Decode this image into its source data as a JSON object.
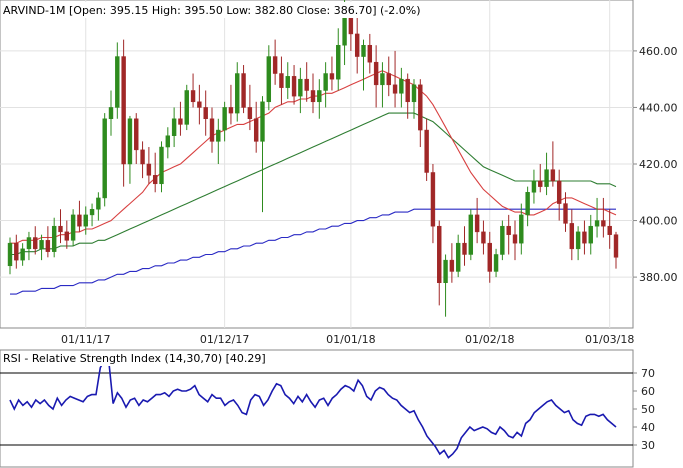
{
  "chart_data": [
    {
      "type": "candlestick",
      "title": "ARVIND-1M [Open: 395.15  High: 395.50  Low: 382.80  Close: 386.70]  (-2.0%)",
      "ylim": [
        362,
        478
      ],
      "yticks": [
        380,
        400,
        420,
        440,
        460
      ],
      "ytick_labels": [
        "380.00",
        "400.00",
        "420.00",
        "440.00",
        "460.00"
      ],
      "xtick_labels": [
        {
          "label": "01/11/17",
          "index": 12
        },
        {
          "label": "01/12/17",
          "index": 34
        },
        {
          "label": "01/01/18",
          "index": 54
        },
        {
          "label": "01/02/18",
          "index": 76
        },
        {
          "label": "01/03/18",
          "index": 95
        }
      ],
      "candles": [
        [
          384,
          394,
          381,
          392
        ],
        [
          392,
          395,
          383,
          386
        ],
        [
          386,
          392,
          384,
          390
        ],
        [
          390,
          396,
          386,
          394
        ],
        [
          394,
          398,
          388,
          390
        ],
        [
          390,
          395,
          386,
          393
        ],
        [
          393,
          398,
          387,
          389
        ],
        [
          389,
          401,
          387,
          398
        ],
        [
          398,
          404,
          392,
          396
        ],
        [
          396,
          400,
          390,
          393
        ],
        [
          393,
          404,
          391,
          402
        ],
        [
          402,
          407,
          396,
          398
        ],
        [
          398,
          405,
          395,
          402
        ],
        [
          402,
          406,
          398,
          404
        ],
        [
          404,
          410,
          400,
          408
        ],
        [
          408,
          438,
          405,
          436
        ],
        [
          436,
          446,
          430,
          440
        ],
        [
          440,
          463,
          436,
          458
        ],
        [
          458,
          464,
          412,
          420
        ],
        [
          420,
          437,
          413,
          436
        ],
        [
          436,
          438,
          420,
          425
        ],
        [
          425,
          428,
          415,
          420
        ],
        [
          420,
          426,
          413,
          416
        ],
        [
          416,
          424,
          410,
          413
        ],
        [
          413,
          428,
          410,
          426
        ],
        [
          426,
          433,
          422,
          430
        ],
        [
          430,
          440,
          426,
          436
        ],
        [
          436,
          442,
          430,
          434
        ],
        [
          434,
          448,
          432,
          446
        ],
        [
          446,
          452,
          440,
          442
        ],
        [
          442,
          448,
          434,
          440
        ],
        [
          440,
          446,
          430,
          436
        ],
        [
          436,
          440,
          424,
          428
        ],
        [
          428,
          436,
          420,
          432
        ],
        [
          432,
          442,
          428,
          440
        ],
        [
          440,
          448,
          434,
          438
        ],
        [
          438,
          456,
          435,
          452
        ],
        [
          452,
          455,
          438,
          440
        ],
        [
          440,
          448,
          432,
          436
        ],
        [
          436,
          442,
          424,
          428
        ],
        [
          428,
          444,
          403,
          442
        ],
        [
          442,
          462,
          439,
          458
        ],
        [
          458,
          464,
          448,
          452
        ],
        [
          452,
          458,
          441,
          447
        ],
        [
          447,
          456,
          443,
          451
        ],
        [
          451,
          455,
          441,
          444
        ],
        [
          444,
          454,
          438,
          450
        ],
        [
          450,
          456,
          442,
          446
        ],
        [
          446,
          452,
          438,
          442
        ],
        [
          442,
          450,
          436,
          446
        ],
        [
          446,
          456,
          440,
          452
        ],
        [
          452,
          458,
          446,
          450
        ],
        [
          450,
          468,
          446,
          462
        ],
        [
          462,
          478,
          455,
          472
        ],
        [
          472,
          477,
          460,
          466
        ],
        [
          466,
          472,
          452,
          458
        ],
        [
          458,
          464,
          446,
          462
        ],
        [
          462,
          466,
          452,
          456
        ],
        [
          456,
          462,
          440,
          448
        ],
        [
          448,
          456,
          440,
          452
        ],
        [
          452,
          458,
          444,
          448
        ],
        [
          448,
          460,
          440,
          445
        ],
        [
          445,
          454,
          440,
          450
        ],
        [
          450,
          452,
          436,
          442
        ],
        [
          442,
          450,
          436,
          448
        ],
        [
          448,
          450,
          426,
          432
        ],
        [
          432,
          436,
          414,
          417
        ],
        [
          417,
          420,
          392,
          398
        ],
        [
          398,
          400,
          370,
          378
        ],
        [
          378,
          388,
          366,
          386
        ],
        [
          386,
          392,
          378,
          382
        ],
        [
          382,
          395,
          380,
          392
        ],
        [
          392,
          398,
          384,
          388
        ],
        [
          388,
          404,
          386,
          402
        ],
        [
          402,
          408,
          392,
          396
        ],
        [
          396,
          400,
          388,
          392
        ],
        [
          392,
          396,
          378,
          382
        ],
        [
          382,
          390,
          380,
          388
        ],
        [
          388,
          400,
          386,
          398
        ],
        [
          398,
          402,
          388,
          395
        ],
        [
          395,
          400,
          386,
          392
        ],
        [
          392,
          406,
          388,
          402
        ],
        [
          402,
          412,
          398,
          410
        ],
        [
          410,
          418,
          406,
          414
        ],
        [
          414,
          420,
          410,
          412
        ],
        [
          412,
          424,
          409,
          418
        ],
        [
          418,
          428,
          412,
          414
        ],
        [
          414,
          418,
          400,
          406
        ],
        [
          406,
          410,
          396,
          399
        ],
        [
          399,
          404,
          386,
          390
        ],
        [
          390,
          398,
          386,
          396
        ],
        [
          396,
          400,
          388,
          392
        ],
        [
          392,
          402,
          388,
          398
        ],
        [
          398,
          408,
          394,
          400
        ],
        [
          400,
          408,
          394,
          398
        ],
        [
          398,
          404,
          390,
          395
        ],
        [
          395,
          396,
          383,
          387
        ]
      ],
      "sma_red": [
        392,
        392,
        393,
        393,
        393,
        394,
        394,
        394,
        395,
        395,
        396,
        396,
        397,
        397,
        398,
        399,
        400,
        402,
        404,
        406,
        408,
        410,
        413,
        415,
        417,
        418,
        419,
        420,
        422,
        424,
        426,
        428,
        430,
        431,
        432,
        433,
        434,
        434,
        435,
        436,
        437,
        438,
        440,
        441,
        442,
        442,
        443,
        443,
        444,
        444,
        445,
        445,
        446,
        447,
        448,
        449,
        450,
        451,
        452,
        453,
        452,
        451,
        450,
        449,
        448,
        446,
        444,
        441,
        437,
        433,
        429,
        425,
        421,
        417,
        414,
        411,
        409,
        407,
        405,
        404,
        403,
        403,
        402,
        402,
        403,
        404,
        406,
        407,
        408,
        408,
        407,
        406,
        405,
        404,
        404,
        403,
        402
      ],
      "sma_green": [
        388,
        388,
        389,
        389,
        389,
        390,
        390,
        390,
        391,
        391,
        391,
        392,
        392,
        392,
        393,
        393,
        394,
        395,
        396,
        397,
        398,
        399,
        400,
        401,
        402,
        403,
        404,
        405,
        406,
        407,
        408,
        409,
        410,
        411,
        412,
        413,
        414,
        415,
        416,
        417,
        418,
        419,
        420,
        421,
        422,
        423,
        424,
        425,
        426,
        427,
        428,
        429,
        430,
        431,
        432,
        433,
        434,
        435,
        436,
        437,
        438,
        438,
        438,
        438,
        438,
        437,
        436,
        435,
        433,
        431,
        429,
        427,
        425,
        423,
        421,
        419,
        418,
        417,
        416,
        415,
        414,
        414,
        414,
        414,
        414,
        414,
        414,
        414,
        414,
        414,
        414,
        414,
        414,
        413,
        413,
        413,
        412
      ],
      "sma_blue": [
        374,
        374,
        375,
        375,
        375,
        376,
        376,
        376,
        377,
        377,
        377,
        378,
        378,
        378,
        379,
        379,
        380,
        381,
        381,
        382,
        382,
        383,
        383,
        384,
        384,
        385,
        385,
        386,
        386,
        387,
        387,
        388,
        388,
        389,
        389,
        390,
        390,
        391,
        391,
        392,
        392,
        393,
        393,
        394,
        394,
        395,
        395,
        396,
        396,
        397,
        397,
        398,
        398,
        399,
        399,
        400,
        400,
        401,
        401,
        402,
        402,
        403,
        403,
        403,
        404,
        404,
        404,
        404,
        404,
        404,
        404,
        404,
        404,
        404,
        404,
        404,
        404,
        404,
        404,
        404,
        404,
        404,
        404,
        404,
        404,
        404,
        404,
        404,
        404,
        404,
        404,
        404,
        404,
        404,
        404,
        404,
        404
      ],
      "colors": {
        "up": "#2e8b1e",
        "down": "#a02727",
        "sma_red": "#d84040",
        "sma_green": "#2e7d32",
        "sma_blue": "#2a2ac4"
      }
    },
    {
      "type": "line",
      "title": "RSI - Relative Strength Index (14,30,70) [40.29]",
      "ylim": [
        20,
        80
      ],
      "yticks": [
        30,
        40,
        50,
        60,
        70
      ],
      "ytick_labels": [
        "30",
        "40",
        "50",
        "60",
        "70"
      ],
      "reference_lines": [
        30,
        70
      ],
      "values": [
        55,
        50,
        55,
        52,
        54,
        51,
        55,
        53,
        55,
        52,
        50,
        56,
        52,
        55,
        57,
        56,
        55,
        54,
        57,
        58,
        58,
        73,
        77,
        76,
        53,
        59,
        56,
        51,
        55,
        56,
        52,
        55,
        54,
        56,
        58,
        58,
        59,
        57,
        60,
        61,
        60,
        60,
        61,
        63,
        58,
        56,
        54,
        58,
        56,
        56,
        52,
        54,
        55,
        52,
        48,
        47,
        55,
        58,
        57,
        52,
        55,
        60,
        64,
        63,
        58,
        56,
        53,
        57,
        54,
        58,
        54,
        51,
        55,
        56,
        52,
        56,
        58,
        61,
        63,
        62,
        60,
        66,
        63,
        57,
        55,
        60,
        62,
        61,
        58,
        56,
        55,
        52,
        50,
        48,
        49,
        44,
        40,
        35,
        32,
        29,
        25,
        27,
        23,
        25,
        28,
        34,
        37,
        40,
        38,
        39,
        40,
        39,
        37,
        36,
        40,
        38,
        35,
        34,
        37,
        35,
        42,
        44,
        48,
        50,
        52,
        54,
        55,
        52,
        50,
        48,
        49,
        44,
        42,
        41,
        46,
        47,
        47,
        46,
        47,
        44,
        42,
        40
      ],
      "color": "#1a1ab0"
    }
  ]
}
